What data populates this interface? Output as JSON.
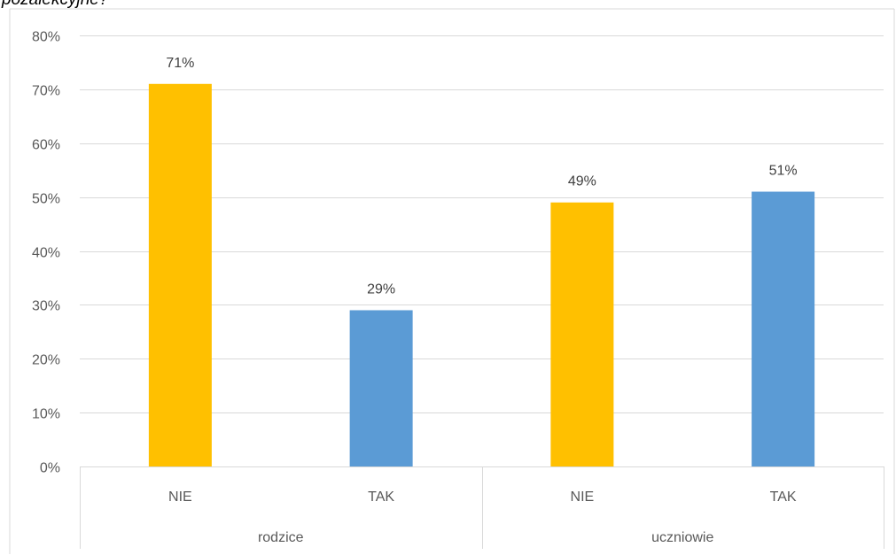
{
  "header": {
    "title_fragment": "pozalekcyjne?"
  },
  "chart_data": {
    "type": "bar",
    "title": "",
    "xlabel": "",
    "ylabel": "",
    "ylim": [
      0,
      80
    ],
    "y_ticks": [
      "0%",
      "10%",
      "20%",
      "30%",
      "40%",
      "50%",
      "60%",
      "70%",
      "80%"
    ],
    "grid": true,
    "legend": "none",
    "groups": [
      {
        "name": "rodzice",
        "bars": [
          {
            "category": "NIE",
            "value": 71,
            "label": "71%",
            "color": "#FFC000"
          },
          {
            "category": "TAK",
            "value": 29,
            "label": "29%",
            "color": "#5B9BD5"
          }
        ]
      },
      {
        "name": "uczniowie",
        "bars": [
          {
            "category": "NIE",
            "value": 49,
            "label": "49%",
            "color": "#FFC000"
          },
          {
            "category": "TAK",
            "value": 51,
            "label": "51%",
            "color": "#5B9BD5"
          }
        ]
      }
    ]
  }
}
